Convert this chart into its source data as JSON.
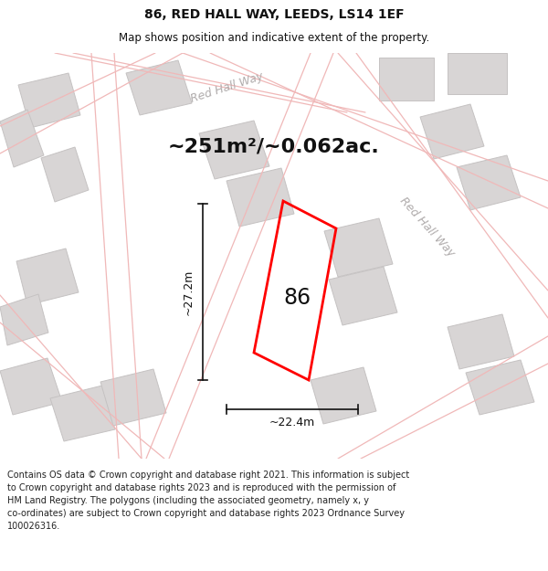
{
  "title": "86, RED HALL WAY, LEEDS, LS14 1EF",
  "subtitle": "Map shows position and indicative extent of the property.",
  "area_label": "~251m²/~0.062ac.",
  "property_number": "86",
  "width_label": "~22.4m",
  "height_label": "~27.2m",
  "map_bg": "#f0eeee",
  "building_fill": "#d8d5d5",
  "building_edge": "#c5c2c2",
  "road_color": "#f0b8b8",
  "property_outline": "#ff0000",
  "dimension_color": "#111111",
  "road_label_color": "#b0acac",
  "footer_text": "Contains OS data © Crown copyright and database right 2021. This information is subject to Crown copyright and database rights 2023 and is reproduced with the permission of HM Land Registry. The polygons (including the associated geometry, namely x, y co-ordinates) are subject to Crown copyright and database rights 2023 Ordnance Survey 100026316.",
  "title_fontsize": 10,
  "subtitle_fontsize": 8.5,
  "area_fontsize": 16,
  "number_fontsize": 17,
  "road_label_fontsize": 9,
  "dim_fontsize": 9,
  "footer_fontsize": 7
}
